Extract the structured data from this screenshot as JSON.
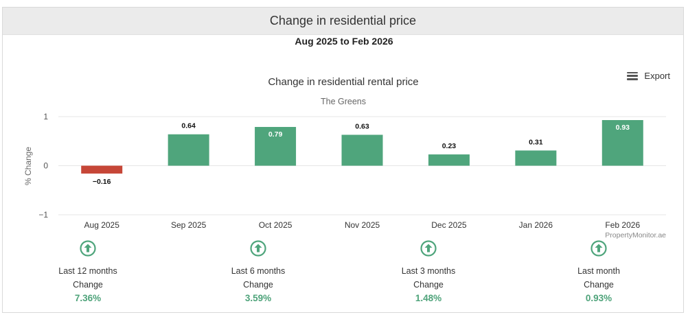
{
  "header": {
    "title": "Change in residential price"
  },
  "period": "Aug 2025 to Feb 2026",
  "export_label": "Export",
  "credit": "PropertyMonitor.ae",
  "chart_data": {
    "type": "bar",
    "title": "Change in residential rental price",
    "subtitle": "The Greens",
    "ylabel": "% Change",
    "xlabel": "",
    "categories": [
      "Aug 2025",
      "Sep 2025",
      "Oct 2025",
      "Nov 2025",
      "Dec 2025",
      "Jan 2026",
      "Feb 2026"
    ],
    "values": [
      -0.16,
      0.64,
      0.79,
      0.63,
      0.23,
      0.31,
      0.93
    ],
    "data_labels": [
      "−0.16",
      "0.64",
      "0.79",
      "0.63",
      "0.23",
      "0.31",
      "0.93"
    ],
    "ylim": [
      -1,
      1
    ],
    "yticks": [
      1,
      0,
      -1
    ],
    "ytick_labels": [
      "1",
      "0",
      "−1"
    ],
    "grid": true,
    "colors": {
      "positive": "#4fa57c",
      "negative": "#c64637"
    }
  },
  "stats": [
    {
      "label": "Last 12 months",
      "sub": "Change",
      "value": "7.36%"
    },
    {
      "label": "Last 6 months",
      "sub": "Change",
      "value": "3.59%"
    },
    {
      "label": "Last 3 months",
      "sub": "Change",
      "value": "1.48%"
    },
    {
      "label": "Last month",
      "sub": "Change",
      "value": "0.93%"
    }
  ],
  "icon_color": "#4fa57c"
}
